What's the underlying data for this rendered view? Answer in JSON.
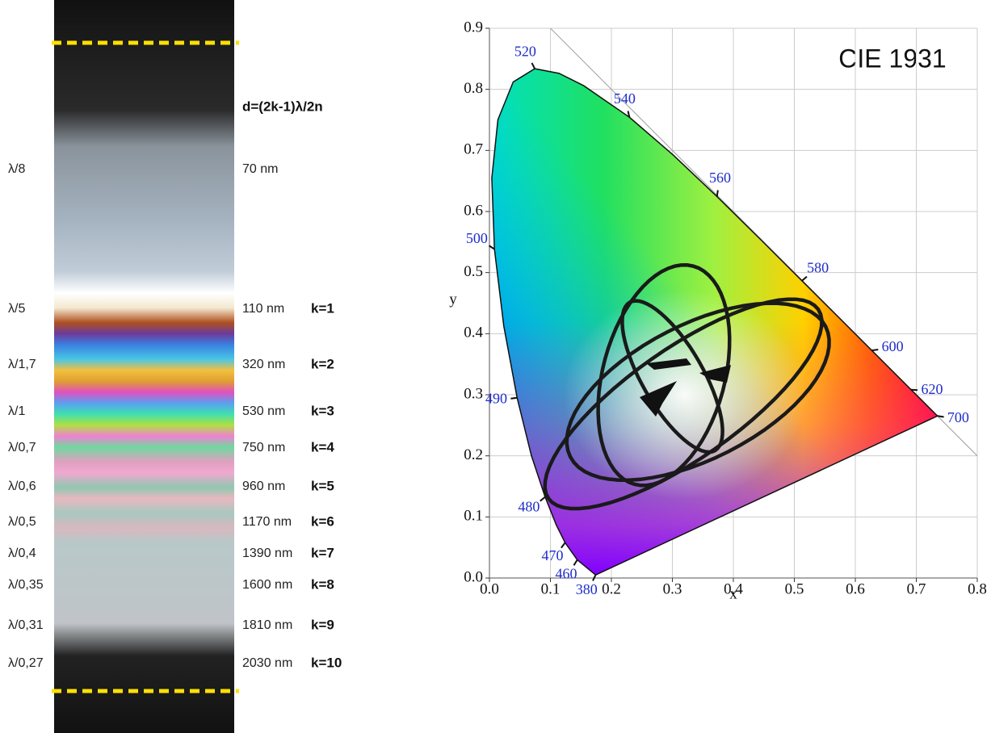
{
  "strip": {
    "formula": "d=(2k-1)λ/2n",
    "rows": [
      {
        "fraction": "λ/8",
        "thickness": "70 nm"
      },
      {
        "fraction": "λ/5",
        "thickness": "110 nm",
        "order": "k=1"
      },
      {
        "fraction": "λ/1,7",
        "thickness": "320 nm",
        "order": "k=2"
      },
      {
        "fraction": "λ/1",
        "thickness": "530 nm",
        "order": "k=3"
      },
      {
        "fraction": "λ/0,7",
        "thickness": "750 nm",
        "order": "k=4"
      },
      {
        "fraction": "λ/0,6",
        "thickness": "960 nm",
        "order": "k=5"
      },
      {
        "fraction": "λ/0,5",
        "thickness": "1170 nm",
        "order": "k=6"
      },
      {
        "fraction": "λ/0,4",
        "thickness": "1390 nm",
        "order": "k=7"
      },
      {
        "fraction": "λ/0,35",
        "thickness": "1600 nm",
        "order": "k=8"
      },
      {
        "fraction": "λ/0,31",
        "thickness": "1810 nm",
        "order": "k=9"
      },
      {
        "fraction": "λ/0,27",
        "thickness": "2030 nm",
        "order": "k=10"
      }
    ]
  },
  "chart_data": {
    "type": "chromaticity",
    "title": "CIE 1931",
    "x_label": "x",
    "y_label": "y",
    "xlim": [
      0,
      0.8
    ],
    "ylim": [
      0,
      0.9
    ],
    "xticks": [
      {
        "value": 0,
        "label": "0.0"
      },
      0.1,
      0.2,
      0.3,
      0.4,
      0.5,
      0.6,
      0.7,
      0.8
    ],
    "yticks": [
      {
        "value": 0,
        "label": "0.0"
      },
      0.1,
      0.2,
      0.3,
      0.4,
      0.5,
      0.6,
      0.7,
      0.8,
      0.9
    ],
    "grid": true,
    "locus": {
      "wavelengths": [
        380,
        460,
        470,
        475,
        480,
        485,
        490,
        495,
        500,
        505,
        510,
        515,
        520,
        525,
        530,
        540,
        550,
        560,
        570,
        580,
        590,
        600,
        620,
        640,
        700
      ],
      "x": [
        0.1741,
        0.144,
        0.1241,
        0.1096,
        0.0913,
        0.0687,
        0.0454,
        0.0235,
        0.0082,
        0.0039,
        0.0139,
        0.0389,
        0.0743,
        0.1142,
        0.1547,
        0.2296,
        0.3016,
        0.3731,
        0.4441,
        0.5125,
        0.5752,
        0.627,
        0.6915,
        0.719,
        0.7347
      ],
      "y": [
        0.005,
        0.0297,
        0.0578,
        0.0868,
        0.1327,
        0.2007,
        0.295,
        0.4127,
        0.5384,
        0.6548,
        0.7502,
        0.812,
        0.8338,
        0.8262,
        0.8059,
        0.7543,
        0.6923,
        0.6245,
        0.5547,
        0.4866,
        0.4242,
        0.3725,
        0.3083,
        0.2809,
        0.2653
      ]
    },
    "wavelength_labels": [
      380,
      460,
      470,
      480,
      490,
      500,
      520,
      540,
      560,
      580,
      600,
      620,
      700
    ],
    "ellipses": [
      {
        "cx": 0.286,
        "cy": 0.332,
        "rx": 0.185,
        "ry": 0.1,
        "angle": 75
      },
      {
        "cx": 0.318,
        "cy": 0.285,
        "rx": 0.27,
        "ry": 0.09,
        "angle": 35
      },
      {
        "cx": 0.342,
        "cy": 0.305,
        "rx": 0.235,
        "ry": 0.11,
        "angle": 27
      },
      {
        "cx": 0.3,
        "cy": 0.33,
        "rx": 0.14,
        "ry": 0.05,
        "angle": -60
      }
    ]
  }
}
